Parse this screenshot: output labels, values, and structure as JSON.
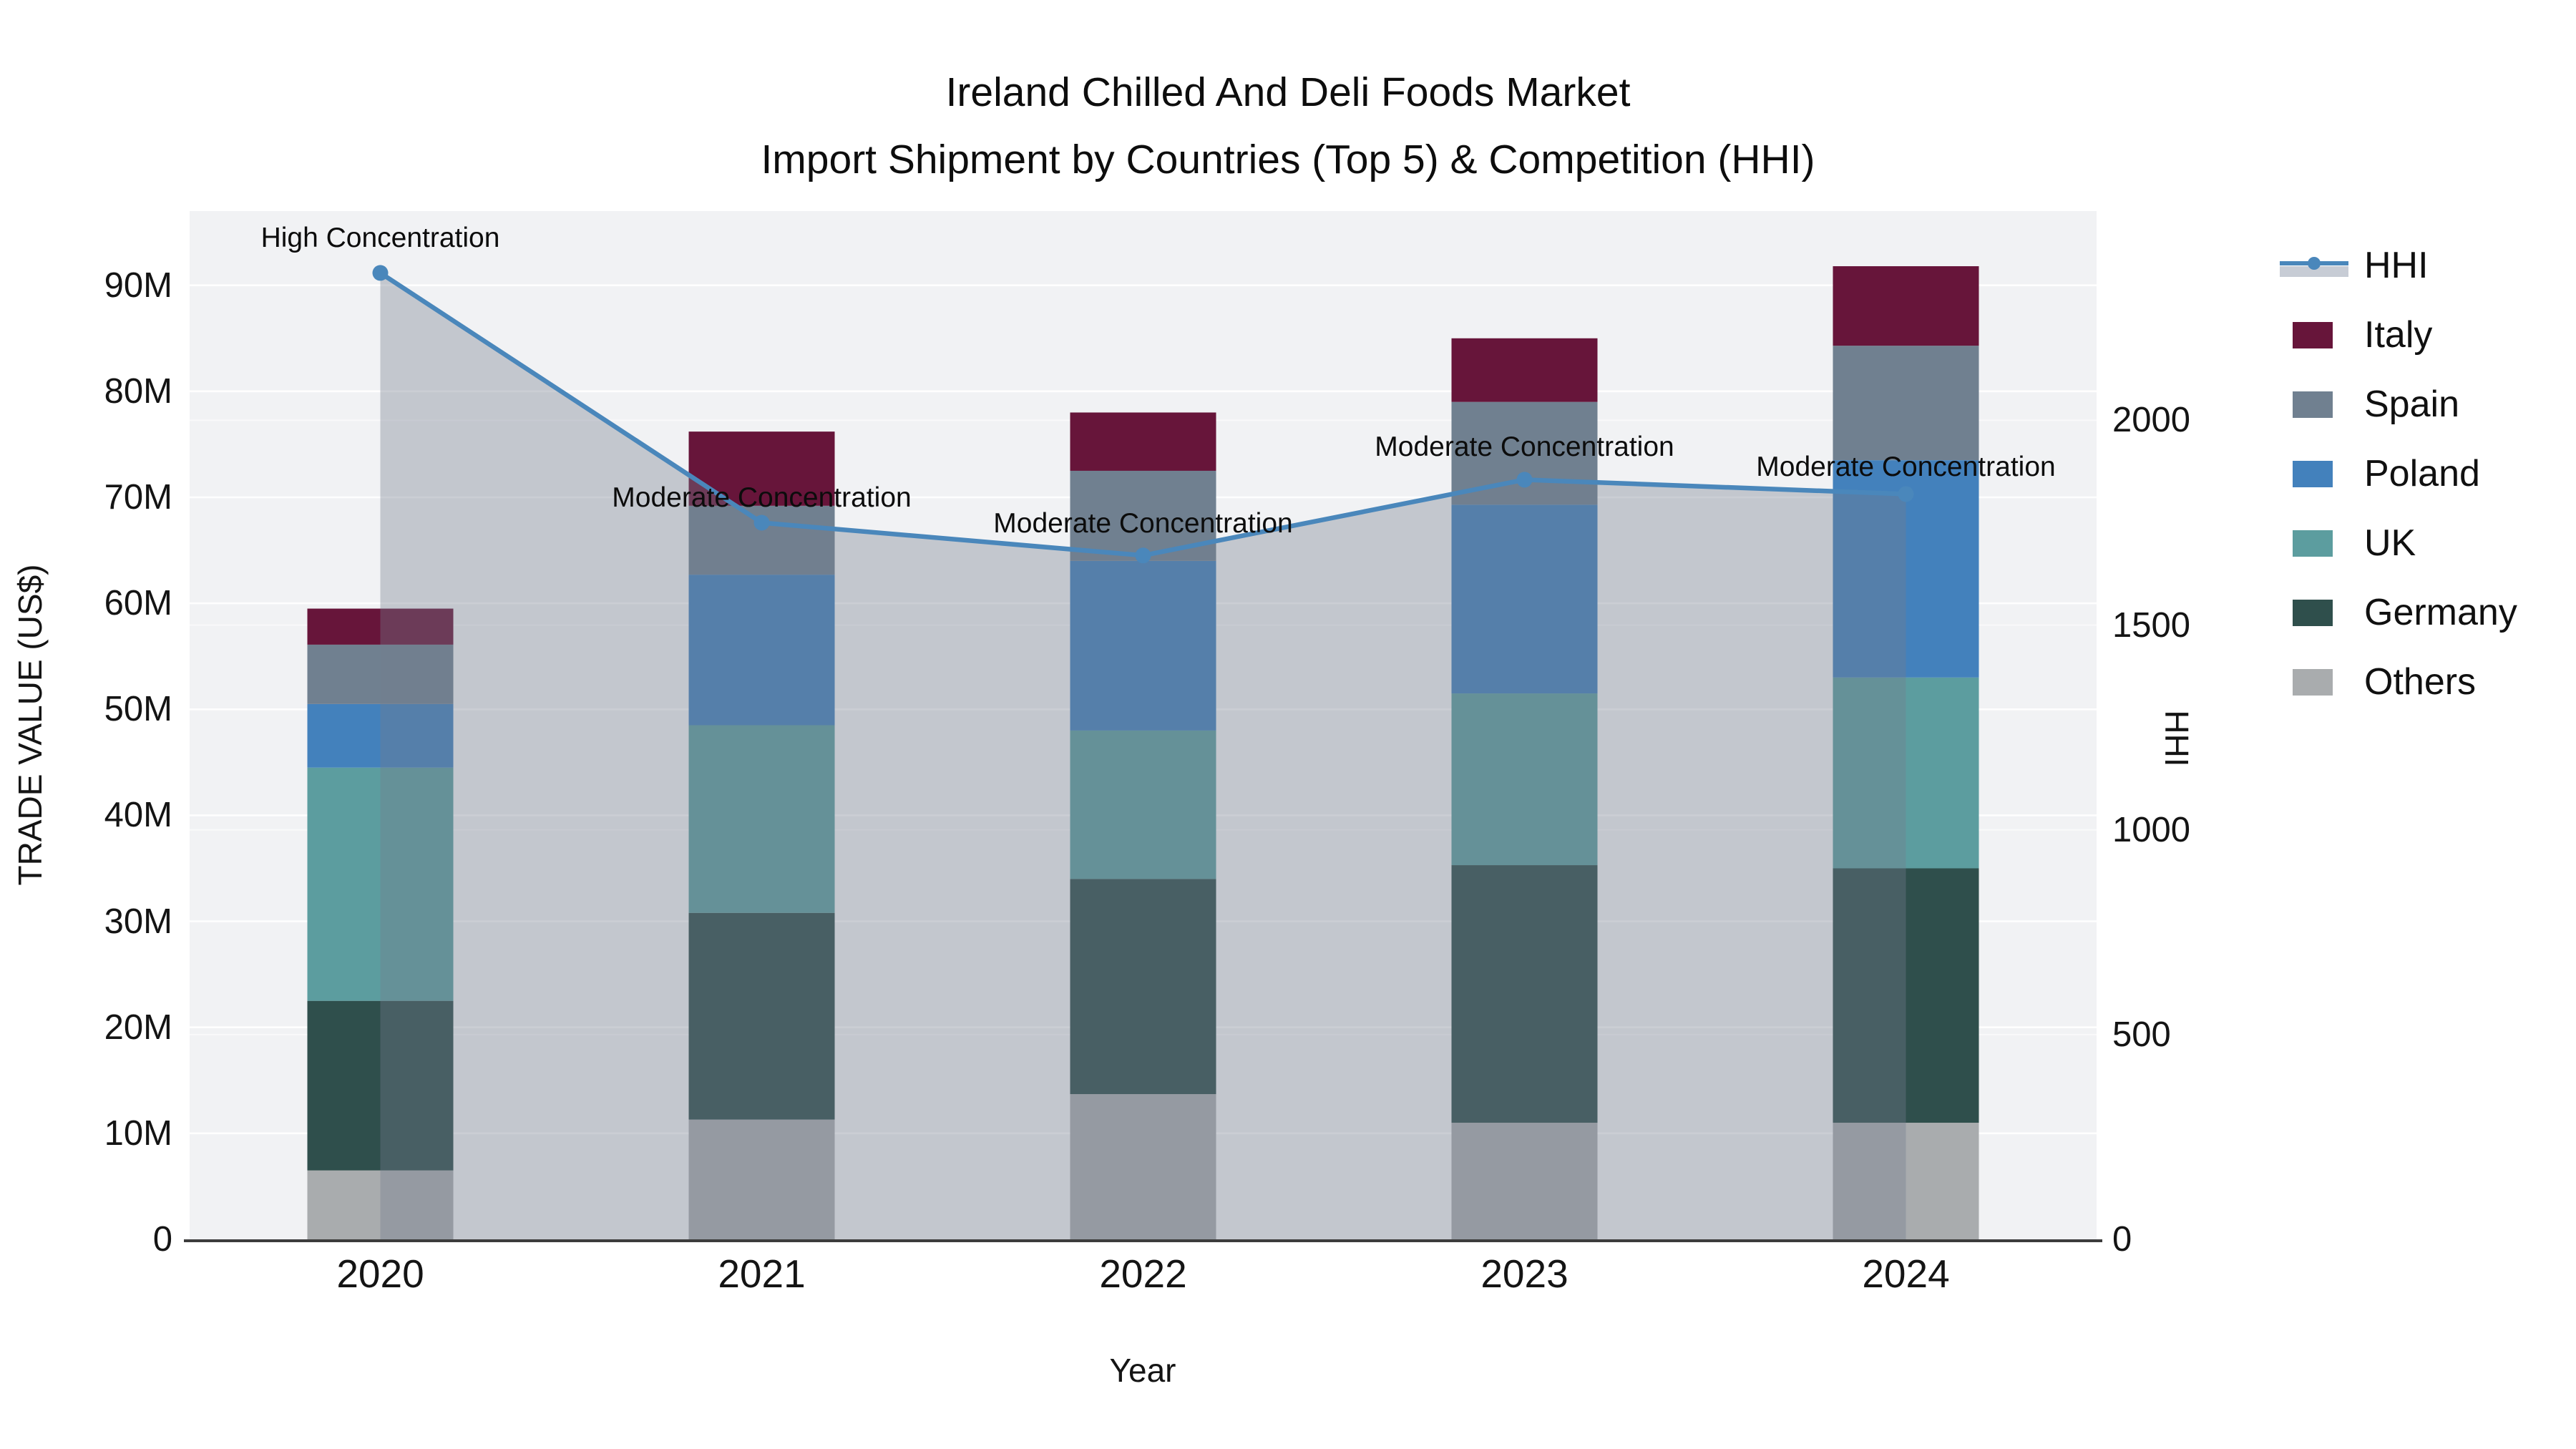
{
  "figure": {
    "title_line1": "Ireland Chilled And Deli Foods Market",
    "title_line2": "Import Shipment by Countries (Top 5) & Competition (HHI)",
    "left_axis_title": "TRADE VALUE (US$)",
    "right_axis_title": "HHI",
    "x_axis_title": "Year"
  },
  "legend": {
    "position": "right",
    "items": [
      {
        "label": "HHI",
        "type": "line",
        "color": "#4A87BB",
        "area_color": "#C7CCD5"
      },
      {
        "label": "Italy",
        "type": "bar",
        "color": "#67153A"
      },
      {
        "label": "Spain",
        "type": "bar",
        "color": "#708090"
      },
      {
        "label": "Poland",
        "type": "bar",
        "color": "#4381BC"
      },
      {
        "label": "UK",
        "type": "bar",
        "color": "#5C9D9F"
      },
      {
        "label": "Germany",
        "type": "bar",
        "color": "#2F4F4C"
      },
      {
        "label": "Others",
        "type": "bar",
        "color": "#A9ACAE"
      }
    ]
  },
  "chart_data": {
    "type": "bar",
    "stacked": true,
    "grid": true,
    "title": "Ireland Chilled And Deli Foods Market — Import Shipment by Countries (Top 5) & Competition (HHI)",
    "categories": [
      "2020",
      "2021",
      "2022",
      "2023",
      "2024"
    ],
    "bar_value_unit": "M US$",
    "series": [
      {
        "name": "Others",
        "color": "#A9ACAE",
        "values": [
          6.5,
          11.3,
          13.7,
          11.0,
          11.0
        ]
      },
      {
        "name": "Germany",
        "color": "#2F4F4C",
        "values": [
          16.0,
          19.5,
          20.3,
          24.3,
          24.0
        ]
      },
      {
        "name": "UK",
        "color": "#5C9D9F",
        "values": [
          22.0,
          17.7,
          14.0,
          16.2,
          18.0
        ]
      },
      {
        "name": "Poland",
        "color": "#4381BC",
        "values": [
          6.0,
          14.2,
          16.0,
          17.8,
          20.5
        ]
      },
      {
        "name": "Spain",
        "color": "#708090",
        "values": [
          5.6,
          6.5,
          8.5,
          9.7,
          10.8
        ]
      },
      {
        "name": "Italy",
        "color": "#67153A",
        "values": [
          3.4,
          7.0,
          5.5,
          6.0,
          7.5
        ]
      }
    ],
    "line_series": {
      "name": "HHI",
      "axis": "right",
      "color": "#4A87BB",
      "area_fill": "rgba(116,124,142,0.37)",
      "values": [
        2360,
        1750,
        1670,
        1855,
        1820
      ]
    },
    "left_axis": {
      "label": "TRADE VALUE (US$)",
      "max": 97,
      "ticks": [
        {
          "v": 0,
          "label": "0"
        },
        {
          "v": 10,
          "label": "10M"
        },
        {
          "v": 20,
          "label": "20M"
        },
        {
          "v": 30,
          "label": "30M"
        },
        {
          "v": 40,
          "label": "40M"
        },
        {
          "v": 50,
          "label": "50M"
        },
        {
          "v": 60,
          "label": "60M"
        },
        {
          "v": 70,
          "label": "70M"
        },
        {
          "v": 80,
          "label": "80M"
        },
        {
          "v": 90,
          "label": "90M"
        }
      ]
    },
    "right_axis": {
      "label": "HHI",
      "max": 2511,
      "ticks": [
        {
          "v": 0,
          "label": "0"
        },
        {
          "v": 500,
          "label": "500"
        },
        {
          "v": 1000,
          "label": "1000"
        },
        {
          "v": 1500,
          "label": "1500"
        },
        {
          "v": 2000,
          "label": "2000"
        }
      ]
    },
    "x_axis": {
      "label": "Year"
    },
    "annotations": [
      {
        "category": "2020",
        "text": "High Concentration",
        "y_left_axis": 94.3
      },
      {
        "category": "2021",
        "text": "Moderate Concentration",
        "y_left_axis": 69.8
      },
      {
        "category": "2022",
        "text": "Moderate Concentration",
        "y_left_axis": 67.4
      },
      {
        "category": "2023",
        "text": "Moderate Concentration",
        "y_left_axis": 74.6
      },
      {
        "category": "2024",
        "text": "Moderate Concentration",
        "y_left_axis": 72.7
      }
    ]
  }
}
